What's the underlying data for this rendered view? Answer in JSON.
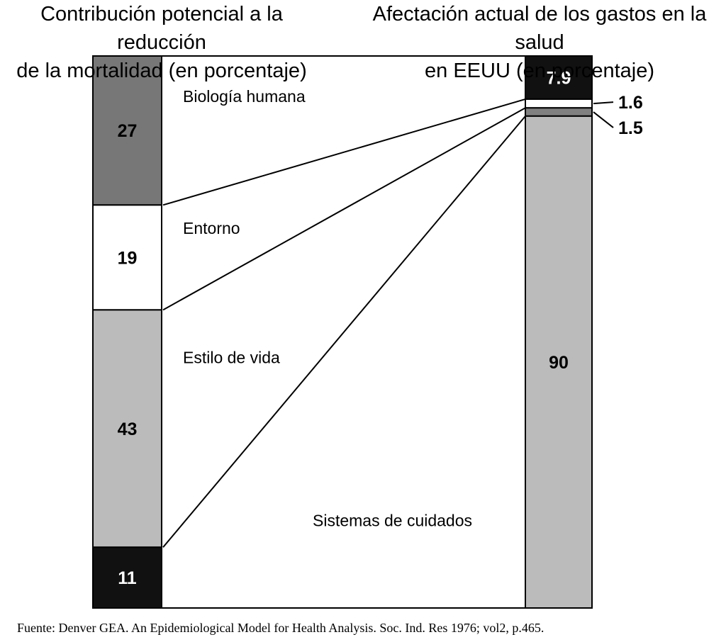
{
  "chart_data": {
    "type": "stacked-bar-comparison",
    "left_title_lines": [
      "Contribución potencial a la reducción",
      "de la mortalidad (en porcentaje)"
    ],
    "right_title_lines": [
      "Afectación actual de los gastos en la salud",
      "en EEUU (en porcentaje)"
    ],
    "categories": [
      "Biología humana",
      "Entorno",
      "Estilo de vida",
      "Sistemas de cuidados"
    ],
    "series": [
      {
        "name": "Contribución potencial a la reducción de la mortalidad (en porcentaje)",
        "values": [
          27,
          19,
          43,
          11
        ],
        "labels": [
          "27",
          "19",
          "43",
          "11"
        ]
      },
      {
        "name": "Afectación actual de los gastos en la salud en EEUU (en porcentaje)",
        "values": [
          7.9,
          1.6,
          1.5,
          90
        ],
        "labels": [
          "7.9",
          "1.6",
          "1.5",
          "90"
        ]
      }
    ],
    "colors": [
      "#111111",
      "#ffffff",
      "#808080",
      "#bfbfbf"
    ],
    "left_colors": [
      "#777777",
      "#ffffff",
      "#bbbbbb",
      "#111111"
    ],
    "right_colors": [
      "#111111",
      "#ffffff",
      "#808080",
      "#bbbbbb"
    ],
    "left_label_colors": [
      "#000000",
      "#000000",
      "#000000",
      "#ffffff"
    ],
    "right_label_colors": [
      "#ffffff",
      "#000000",
      "#000000",
      "#000000"
    ],
    "scale_max": 100
  },
  "source": "Fuente: Denver GEA. An Epidemiological Model for Health Analysis. Soc. Ind. Res 1976; vol2, p.465."
}
